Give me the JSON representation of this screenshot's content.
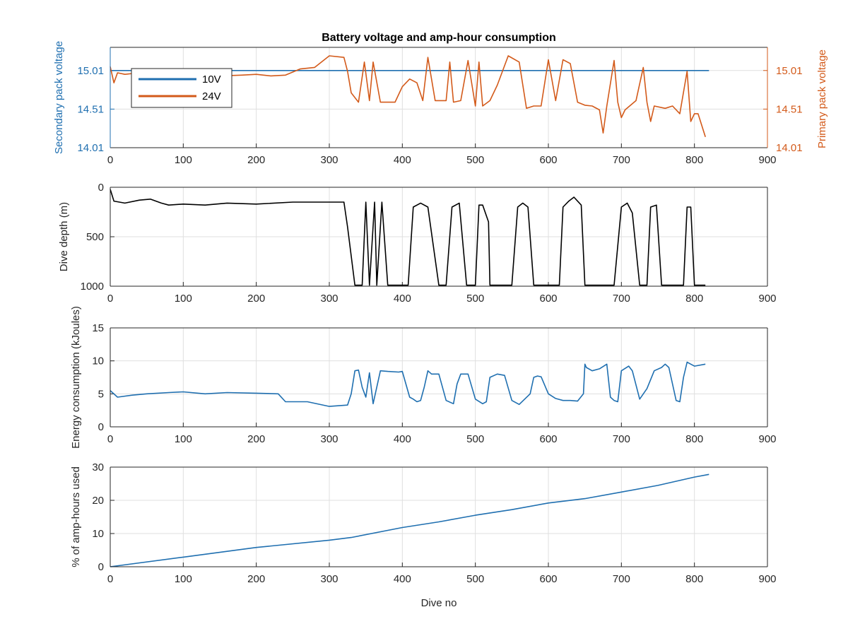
{
  "figure": {
    "title": "Battery voltage and amp-hour consumption",
    "xlabel": "Dive no"
  },
  "colors": {
    "axis": "#262626",
    "grid": "#dfdfdf",
    "blue": "#1f6fb0",
    "orange": "#d35a1a",
    "black": "#000000"
  },
  "chart_data": [
    {
      "type": "line",
      "id": "voltage",
      "title": "Battery voltage and amp-hour consumption",
      "xlabel": "",
      "ylabel": "Secondary pack voltage",
      "ylabel_right": "Primary pack voltage",
      "xlim": [
        0,
        900
      ],
      "ylim": [
        14.01,
        15.31
      ],
      "ylim_right": [
        14.01,
        15.31
      ],
      "x_ticks": [
        "0",
        "100",
        "200",
        "300",
        "400",
        "500",
        "600",
        "700",
        "800",
        "900"
      ],
      "y_ticks": [
        "14.01",
        "14.51",
        "15.01"
      ],
      "y_ticks_right": [
        "14.01",
        "14.51",
        "15.01"
      ],
      "grid": true,
      "legend": {
        "position": "top-left",
        "entries": [
          "10V",
          "24V"
        ]
      },
      "series": [
        {
          "name": "10V",
          "axis": "left",
          "color": "#1f6fb0",
          "x": [
            0,
            820
          ],
          "y": [
            15.01,
            15.01
          ]
        },
        {
          "name": "24V",
          "axis": "right",
          "color": "#d35a1a",
          "x": [
            0,
            5,
            10,
            20,
            40,
            60,
            80,
            100,
            120,
            150,
            180,
            200,
            220,
            240,
            260,
            280,
            300,
            320,
            325,
            330,
            340,
            348,
            355,
            360,
            370,
            378,
            390,
            400,
            410,
            420,
            428,
            435,
            445,
            460,
            465,
            470,
            480,
            490,
            500,
            505,
            510,
            520,
            530,
            545,
            560,
            570,
            580,
            590,
            600,
            610,
            620,
            630,
            640,
            650,
            660,
            670,
            675,
            680,
            690,
            695,
            700,
            705,
            720,
            730,
            735,
            740,
            745,
            760,
            770,
            780,
            790,
            795,
            800,
            805,
            815
          ],
          "y": [
            15.06,
            14.85,
            14.98,
            14.96,
            14.98,
            14.96,
            14.97,
            14.98,
            14.96,
            14.94,
            14.95,
            14.96,
            14.94,
            14.95,
            15.03,
            15.05,
            15.2,
            15.18,
            15.0,
            14.72,
            14.6,
            15.12,
            14.62,
            15.12,
            14.6,
            14.6,
            14.6,
            14.8,
            14.9,
            14.85,
            14.62,
            15.18,
            14.62,
            14.62,
            15.12,
            14.6,
            14.62,
            15.14,
            14.55,
            15.12,
            14.55,
            14.62,
            14.82,
            15.2,
            15.12,
            14.52,
            14.55,
            14.55,
            15.15,
            14.62,
            15.15,
            15.1,
            14.6,
            14.56,
            14.55,
            14.5,
            14.2,
            14.55,
            15.14,
            14.6,
            14.4,
            14.5,
            14.62,
            15.05,
            14.6,
            14.35,
            14.55,
            14.52,
            14.55,
            14.45,
            15.0,
            14.35,
            14.45,
            14.45,
            14.15
          ]
        }
      ]
    },
    {
      "type": "line",
      "id": "depth",
      "title": "",
      "xlabel": "",
      "ylabel": "Dive depth (m)",
      "xlim": [
        0,
        900
      ],
      "ylim": [
        0,
        1000
      ],
      "y_reversed": true,
      "x_ticks": [
        "0",
        "100",
        "200",
        "300",
        "400",
        "500",
        "600",
        "700",
        "800",
        "900"
      ],
      "y_ticks": [
        "0",
        "500",
        "1000"
      ],
      "grid": true,
      "series": [
        {
          "color": "#000000",
          "x": [
            0,
            5,
            20,
            40,
            55,
            70,
            80,
            100,
            130,
            160,
            200,
            250,
            300,
            320,
            325,
            335,
            345,
            350,
            355,
            362,
            365,
            372,
            380,
            395,
            408,
            415,
            425,
            435,
            450,
            460,
            468,
            478,
            488,
            500,
            505,
            510,
            518,
            520,
            522,
            540,
            550,
            558,
            565,
            572,
            580,
            590,
            615,
            620,
            628,
            635,
            645,
            650,
            660,
            680,
            690,
            700,
            708,
            715,
            725,
            735,
            740,
            748,
            755,
            760,
            775,
            785,
            790,
            795,
            800,
            815
          ],
          "y": [
            20,
            140,
            160,
            130,
            120,
            160,
            180,
            170,
            180,
            160,
            170,
            150,
            150,
            150,
            400,
            990,
            990,
            150,
            990,
            150,
            990,
            150,
            990,
            990,
            990,
            200,
            160,
            200,
            990,
            990,
            200,
            160,
            990,
            990,
            180,
            180,
            350,
            990,
            990,
            990,
            990,
            200,
            160,
            200,
            990,
            990,
            990,
            200,
            140,
            100,
            180,
            990,
            990,
            990,
            990,
            200,
            160,
            260,
            990,
            990,
            200,
            180,
            990,
            990,
            990,
            990,
            200,
            200,
            990,
            990
          ]
        }
      ]
    },
    {
      "type": "line",
      "id": "energy",
      "title": "",
      "xlabel": "",
      "ylabel": "Energy consumption (kJoules)",
      "xlim": [
        0,
        900
      ],
      "ylim": [
        0,
        15
      ],
      "x_ticks": [
        "0",
        "100",
        "200",
        "300",
        "400",
        "500",
        "600",
        "700",
        "800",
        "900"
      ],
      "y_ticks": [
        "0",
        "5",
        "10",
        "15"
      ],
      "grid": true,
      "series": [
        {
          "color": "#1f6fb0",
          "x": [
            0,
            10,
            30,
            50,
            80,
            100,
            130,
            160,
            200,
            230,
            240,
            270,
            300,
            325,
            330,
            335,
            340,
            345,
            350,
            355,
            360,
            370,
            380,
            395,
            400,
            410,
            415,
            420,
            425,
            430,
            435,
            440,
            450,
            460,
            470,
            475,
            480,
            490,
            500,
            510,
            515,
            520,
            530,
            540,
            550,
            560,
            575,
            580,
            585,
            590,
            600,
            610,
            620,
            630,
            640,
            648,
            650,
            652,
            660,
            670,
            680,
            685,
            690,
            695,
            700,
            710,
            715,
            725,
            735,
            745,
            755,
            760,
            765,
            775,
            780,
            785,
            790,
            795,
            800,
            815
          ],
          "y": [
            5.5,
            4.5,
            4.8,
            5.0,
            5.2,
            5.3,
            5.0,
            5.2,
            5.1,
            5.0,
            3.8,
            3.8,
            3.1,
            3.3,
            5.0,
            8.5,
            8.6,
            6.0,
            4.5,
            8.2,
            3.5,
            8.5,
            8.4,
            8.3,
            8.4,
            4.5,
            4.2,
            3.8,
            4.0,
            6.0,
            8.5,
            8.0,
            8.0,
            4.0,
            3.5,
            6.5,
            8.0,
            8.0,
            4.2,
            3.5,
            3.8,
            7.5,
            8.0,
            7.8,
            4.0,
            3.4,
            5.0,
            7.5,
            7.7,
            7.6,
            5.0,
            4.3,
            4.0,
            4.0,
            3.9,
            5.0,
            9.5,
            9.0,
            8.5,
            8.8,
            9.5,
            4.5,
            4.0,
            3.8,
            8.5,
            9.2,
            8.5,
            4.2,
            5.8,
            8.5,
            9.0,
            9.5,
            9.0,
            4.0,
            3.8,
            7.5,
            9.8,
            9.5,
            9.2,
            9.5
          ]
        }
      ]
    },
    {
      "type": "line",
      "id": "amphours",
      "title": "",
      "xlabel": "Dive no",
      "ylabel": "% of amp-hours used",
      "xlim": [
        0,
        900
      ],
      "ylim": [
        0,
        30
      ],
      "x_ticks": [
        "0",
        "100",
        "200",
        "300",
        "400",
        "500",
        "600",
        "700",
        "800",
        "900"
      ],
      "y_ticks": [
        "0",
        "10",
        "20",
        "30"
      ],
      "grid": true,
      "series": [
        {
          "color": "#1f6fb0",
          "x": [
            0,
            100,
            200,
            300,
            330,
            400,
            450,
            500,
            550,
            600,
            650,
            700,
            750,
            800,
            820
          ],
          "y": [
            0,
            2.9,
            5.8,
            8.0,
            8.8,
            11.8,
            13.5,
            15.5,
            17.2,
            19.2,
            20.5,
            22.5,
            24.5,
            27.0,
            27.8
          ]
        }
      ]
    }
  ]
}
